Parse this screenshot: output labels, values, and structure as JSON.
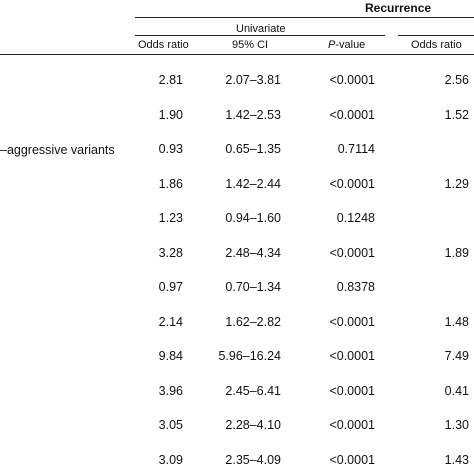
{
  "table": {
    "title": "Recurrence",
    "group_label": "Univariate",
    "columns": {
      "odds_ratio": "Odds ratio",
      "ci": "95% CI",
      "p_italic": "P",
      "p_rest": "-value",
      "odds_ratio_2": "Odds ratio"
    },
    "partial_row_label": "–aggressive variants",
    "rows": [
      {
        "or": "2.81",
        "ci": "2.07–3.81",
        "p": "<0.0001",
        "or2": "2.56"
      },
      {
        "or": "1.90",
        "ci": "1.42–2.53",
        "p": "<0.0001",
        "or2": "1.52"
      },
      {
        "or": "0.93",
        "ci": "0.65–1.35",
        "p": "0.7114",
        "or2": ""
      },
      {
        "or": "1.86",
        "ci": "1.42–2.44",
        "p": "<0.0001",
        "or2": "1.29"
      },
      {
        "or": "1.23",
        "ci": "0.94–1.60",
        "p": "0.1248",
        "or2": ""
      },
      {
        "or": "3.28",
        "ci": "2.48–4.34",
        "p": "<0.0001",
        "or2": "1.89"
      },
      {
        "or": "0.97",
        "ci": "0.70–1.34",
        "p": "0.8378",
        "or2": ""
      },
      {
        "or": "2.14",
        "ci": "1.62–2.82",
        "p": "<0.0001",
        "or2": "1.48"
      },
      {
        "or": "9.84",
        "ci": "5.96–16.24",
        "p": "<0.0001",
        "or2": "7.49"
      },
      {
        "or": "3.96",
        "ci": "2.45–6.41",
        "p": "<0.0001",
        "or2": "0.41"
      },
      {
        "or": "3.05",
        "ci": "2.28–4.10",
        "p": "<0.0001",
        "or2": "1.30"
      },
      {
        "or": "3.09",
        "ci": "2.35–4.09",
        "p": "<0.0001",
        "or2": "1.43"
      }
    ]
  }
}
